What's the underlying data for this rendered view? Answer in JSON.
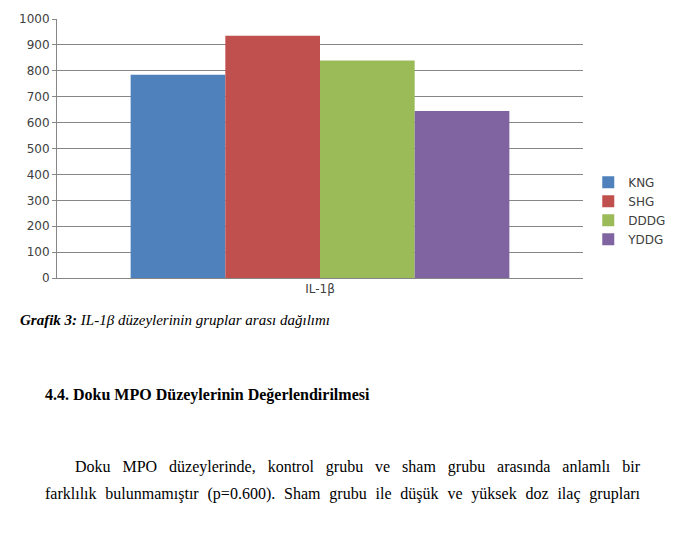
{
  "chart_data": {
    "type": "bar",
    "categories": [
      "IL-1β"
    ],
    "series": [
      {
        "name": "KNG",
        "color": "#4f81bd",
        "values": [
          785
        ]
      },
      {
        "name": "SHG",
        "color": "#c0504d",
        "values": [
          935
        ]
      },
      {
        "name": "DDDG",
        "color": "#9bbb59",
        "values": [
          840
        ]
      },
      {
        "name": "YDDG",
        "color": "#8064a2",
        "values": [
          645
        ]
      }
    ],
    "ylim": [
      0,
      1000
    ],
    "yticks": [
      0,
      100,
      200,
      300,
      400,
      500,
      600,
      700,
      800,
      900,
      1000
    ],
    "grid": true,
    "legend": "right"
  },
  "caption": {
    "label": "Grafik 3:",
    "text": "IL-1β düzeylerinin gruplar arası dağılımı"
  },
  "heading": "4.4. Doku MPO Düzeylerinin Değerlendirilmesi",
  "paragraph": [
    "Doku MPO düzeylerinde, kontrol grubu ve sham grubu arasında anlamlı bir",
    "farklılık bulunmamıştır (p=0.600). Sham grubu ile düşük ve yüksek doz ilaç grupları"
  ]
}
